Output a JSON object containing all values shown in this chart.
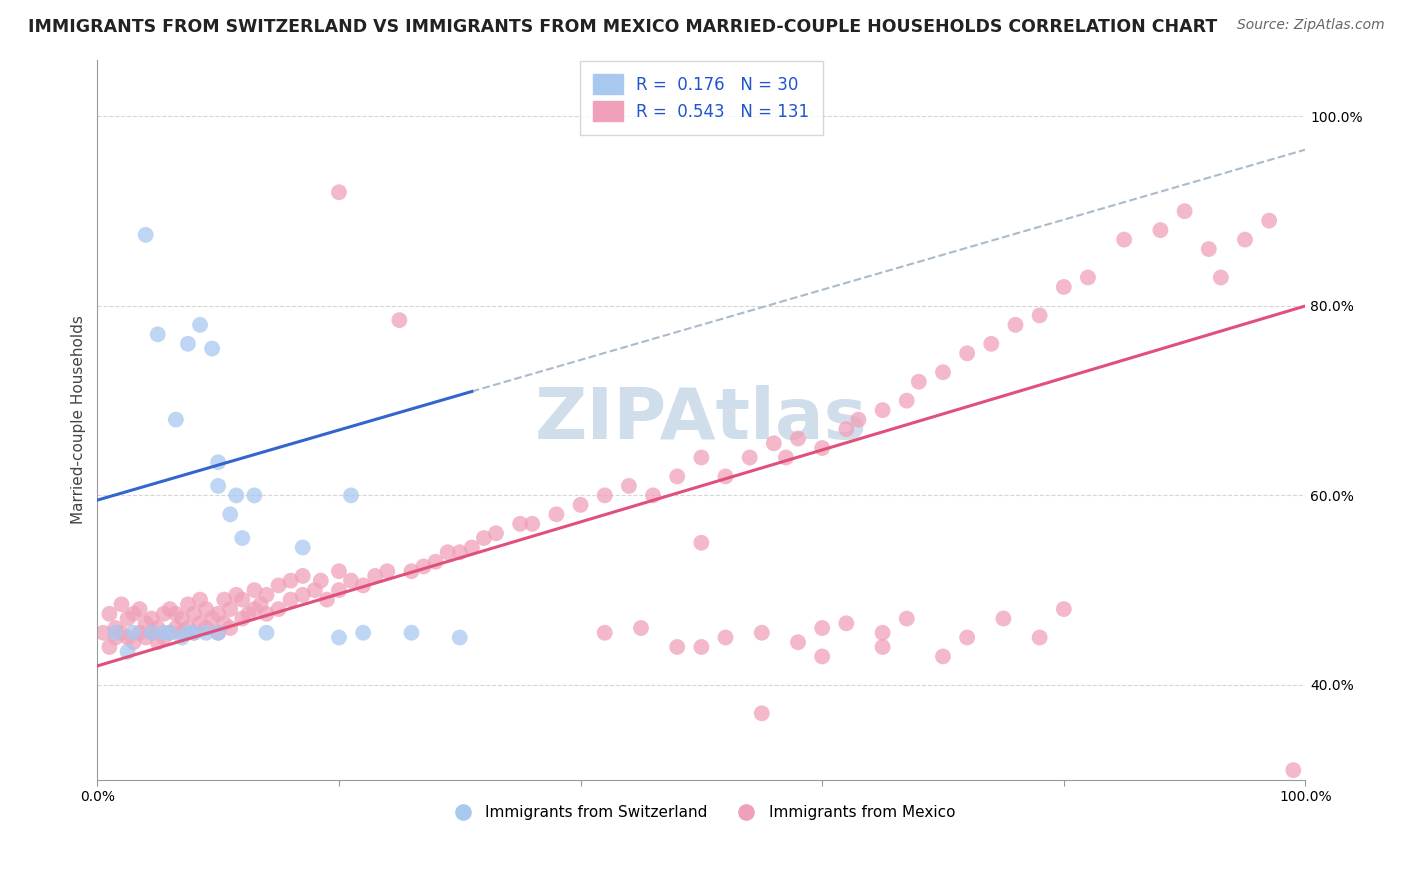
{
  "title": "IMMIGRANTS FROM SWITZERLAND VS IMMIGRANTS FROM MEXICO MARRIED-COUPLE HOUSEHOLDS CORRELATION CHART",
  "source": "Source: ZipAtlas.com",
  "ylabel": "Married-couple Households",
  "xlim": [
    0.0,
    1.0
  ],
  "ylim": [
    0.3,
    1.06
  ],
  "y_ticks": [
    0.4,
    0.6,
    0.8,
    1.0
  ],
  "legend1_r": "0.176",
  "legend1_n": "30",
  "legend2_r": "0.543",
  "legend2_n": "131",
  "blue_color": "#a8c8f0",
  "pink_color": "#f0a0b8",
  "blue_line_color": "#3366cc",
  "pink_line_color": "#e0507a",
  "dash_color": "#aabbcc",
  "watermark_color": "#c8d8e8",
  "title_fontsize": 12.5,
  "source_fontsize": 10,
  "axis_label_fontsize": 11,
  "tick_fontsize": 10,
  "legend_fontsize": 12,
  "blue_x": [
    0.015,
    0.025,
    0.03,
    0.04,
    0.045,
    0.05,
    0.055,
    0.06,
    0.065,
    0.07,
    0.075,
    0.075,
    0.08,
    0.085,
    0.09,
    0.095,
    0.1,
    0.1,
    0.1,
    0.11,
    0.115,
    0.12,
    0.13,
    0.14,
    0.17,
    0.2,
    0.21,
    0.22,
    0.26,
    0.3
  ],
  "blue_y": [
    0.455,
    0.435,
    0.455,
    0.875,
    0.455,
    0.77,
    0.455,
    0.455,
    0.68,
    0.45,
    0.455,
    0.76,
    0.455,
    0.78,
    0.455,
    0.755,
    0.455,
    0.635,
    0.61,
    0.58,
    0.6,
    0.555,
    0.6,
    0.455,
    0.545,
    0.45,
    0.6,
    0.455,
    0.455,
    0.45
  ],
  "pink_x": [
    0.005,
    0.01,
    0.01,
    0.015,
    0.015,
    0.02,
    0.02,
    0.025,
    0.025,
    0.03,
    0.03,
    0.035,
    0.035,
    0.04,
    0.04,
    0.045,
    0.045,
    0.05,
    0.05,
    0.055,
    0.055,
    0.06,
    0.06,
    0.065,
    0.065,
    0.07,
    0.07,
    0.075,
    0.075,
    0.08,
    0.08,
    0.085,
    0.085,
    0.09,
    0.09,
    0.095,
    0.1,
    0.1,
    0.105,
    0.105,
    0.11,
    0.11,
    0.115,
    0.12,
    0.12,
    0.125,
    0.13,
    0.13,
    0.135,
    0.14,
    0.14,
    0.15,
    0.15,
    0.16,
    0.16,
    0.17,
    0.17,
    0.18,
    0.185,
    0.19,
    0.2,
    0.2,
    0.21,
    0.22,
    0.23,
    0.24,
    0.25,
    0.26,
    0.27,
    0.28,
    0.29,
    0.3,
    0.31,
    0.32,
    0.33,
    0.35,
    0.36,
    0.38,
    0.4,
    0.42,
    0.44,
    0.46,
    0.48,
    0.5,
    0.5,
    0.52,
    0.54,
    0.56,
    0.57,
    0.58,
    0.6,
    0.62,
    0.63,
    0.65,
    0.67,
    0.68,
    0.7,
    0.72,
    0.74,
    0.76,
    0.78,
    0.8,
    0.82,
    0.85,
    0.88,
    0.9,
    0.92,
    0.93,
    0.95,
    0.97,
    0.99,
    0.5,
    0.55,
    0.6,
    0.65,
    0.7,
    0.72,
    0.75,
    0.78,
    0.8,
    0.42,
    0.45,
    0.48,
    0.52,
    0.55,
    0.58,
    0.6,
    0.62,
    0.65,
    0.67,
    0.2
  ],
  "pink_y": [
    0.455,
    0.44,
    0.475,
    0.45,
    0.46,
    0.455,
    0.485,
    0.45,
    0.47,
    0.445,
    0.475,
    0.455,
    0.48,
    0.45,
    0.465,
    0.455,
    0.47,
    0.445,
    0.46,
    0.45,
    0.475,
    0.455,
    0.48,
    0.46,
    0.475,
    0.455,
    0.47,
    0.46,
    0.485,
    0.455,
    0.475,
    0.465,
    0.49,
    0.46,
    0.48,
    0.47,
    0.455,
    0.475,
    0.465,
    0.49,
    0.46,
    0.48,
    0.495,
    0.47,
    0.49,
    0.475,
    0.48,
    0.5,
    0.485,
    0.475,
    0.495,
    0.48,
    0.505,
    0.49,
    0.51,
    0.495,
    0.515,
    0.5,
    0.51,
    0.49,
    0.5,
    0.52,
    0.51,
    0.505,
    0.515,
    0.52,
    0.785,
    0.52,
    0.525,
    0.53,
    0.54,
    0.54,
    0.545,
    0.555,
    0.56,
    0.57,
    0.57,
    0.58,
    0.59,
    0.6,
    0.61,
    0.6,
    0.62,
    0.55,
    0.64,
    0.62,
    0.64,
    0.655,
    0.64,
    0.66,
    0.65,
    0.67,
    0.68,
    0.69,
    0.7,
    0.72,
    0.73,
    0.75,
    0.76,
    0.78,
    0.79,
    0.82,
    0.83,
    0.87,
    0.88,
    0.9,
    0.86,
    0.83,
    0.87,
    0.89,
    0.31,
    0.44,
    0.37,
    0.43,
    0.44,
    0.43,
    0.45,
    0.47,
    0.45,
    0.48,
    0.455,
    0.46,
    0.44,
    0.45,
    0.455,
    0.445,
    0.46,
    0.465,
    0.455,
    0.47,
    0.92
  ]
}
